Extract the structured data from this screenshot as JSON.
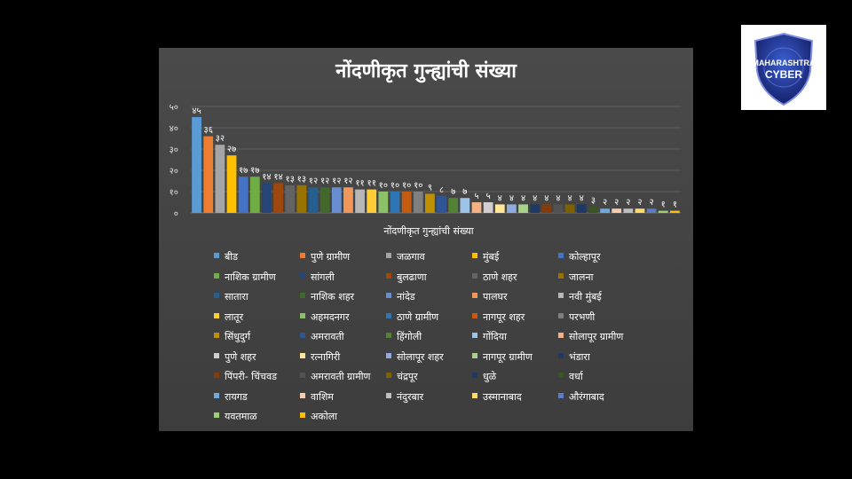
{
  "chart_data": {
    "type": "bar",
    "title": "नोंदणीकृत गुन्ह्यांची संख्या",
    "xlabel": "नोंदणीकृत गुन्ह्यांची संख्या",
    "ylabel": "",
    "ylim": [
      0,
      50
    ],
    "yticks": [
      "०",
      "१०",
      "२०",
      "३०",
      "४०",
      "५०"
    ],
    "grid": true,
    "legend_position": "bottom",
    "categories": [
      "बीड",
      "पुणे ग्रामीण",
      "जळगाव",
      "मुंबई",
      "कोल्हापूर",
      "नाशिक ग्रामीण",
      "सांगली",
      "बुलढाणा",
      "ठाणे शहर",
      "जालना",
      "सातारा",
      "नाशिक शहर",
      "नांदेड",
      "पालघर",
      "नवी मुंबई",
      "लातूर",
      "अहमदनगर",
      "ठाणे ग्रामीण",
      "नागपूर शहर",
      "परभणी",
      "सिंधुदुर्ग",
      "अमरावती",
      "हिंगोली",
      "गोंदिया",
      "सोलापूर ग्रामीण",
      "पुणे शहर",
      "रत्नागिरी",
      "सोलापूर शहर",
      "नागपूर ग्रामीण",
      "भंडारा",
      "पिंपरी- चिंचवड",
      "अमरावती ग्रामीण",
      "चंद्रपूर",
      "धुळे",
      "वर्धा",
      "रायगड",
      "वाशिम",
      "नंदुरबार",
      "उस्मानाबाद",
      "औरंगाबाद",
      "यवतमाळ",
      "अकोला"
    ],
    "values": [
      45,
      36,
      32,
      27,
      17,
      17,
      14,
      14,
      13,
      13,
      12,
      12,
      12,
      12,
      11,
      11,
      10,
      10,
      10,
      10,
      9,
      8,
      7,
      7,
      5,
      5,
      4,
      4,
      4,
      4,
      4,
      4,
      4,
      4,
      3,
      2,
      2,
      2,
      2,
      2,
      1,
      1
    ],
    "data_labels": [
      "४५",
      "३६",
      "३२",
      "२७",
      "१७",
      "१७",
      "१४",
      "१४",
      "१३",
      "१३",
      "१२",
      "१२",
      "१२",
      "१२",
      "११",
      "११",
      "१०",
      "१०",
      "१०",
      "१०",
      "९",
      "८",
      "७",
      "७",
      "५",
      "५",
      "४",
      "४",
      "४",
      "४",
      "४",
      "४",
      "४",
      "४",
      "३",
      "२",
      "२",
      "२",
      "२",
      "२",
      "१",
      "१"
    ],
    "colors": [
      "#5b9bd5",
      "#ed7d31",
      "#a5a5a5",
      "#ffc000",
      "#4472c4",
      "#70ad47",
      "#264478",
      "#9e480e",
      "#636363",
      "#997300",
      "#255e91",
      "#43682b",
      "#698ed0",
      "#f1975a",
      "#b7b7b7",
      "#ffcd33",
      "#8cc168",
      "#2e75b6",
      "#c55a11",
      "#7f7f7f",
      "#bf9000",
      "#2f5597",
      "#548235",
      "#9dc3e6",
      "#f4b183",
      "#d0cece",
      "#ffe699",
      "#8faadc",
      "#a9d18e",
      "#1f3864",
      "#843c0c",
      "#525252",
      "#7f6000",
      "#203864",
      "#375623",
      "#6fa8dc",
      "#f8cbad",
      "#bfbfbf",
      "#ffd966",
      "#5b7bc5",
      "#9bd06a",
      "#ffc000"
    ]
  },
  "logo": {
    "line1": "MAHARASHTRA",
    "line2": "CYBER"
  }
}
